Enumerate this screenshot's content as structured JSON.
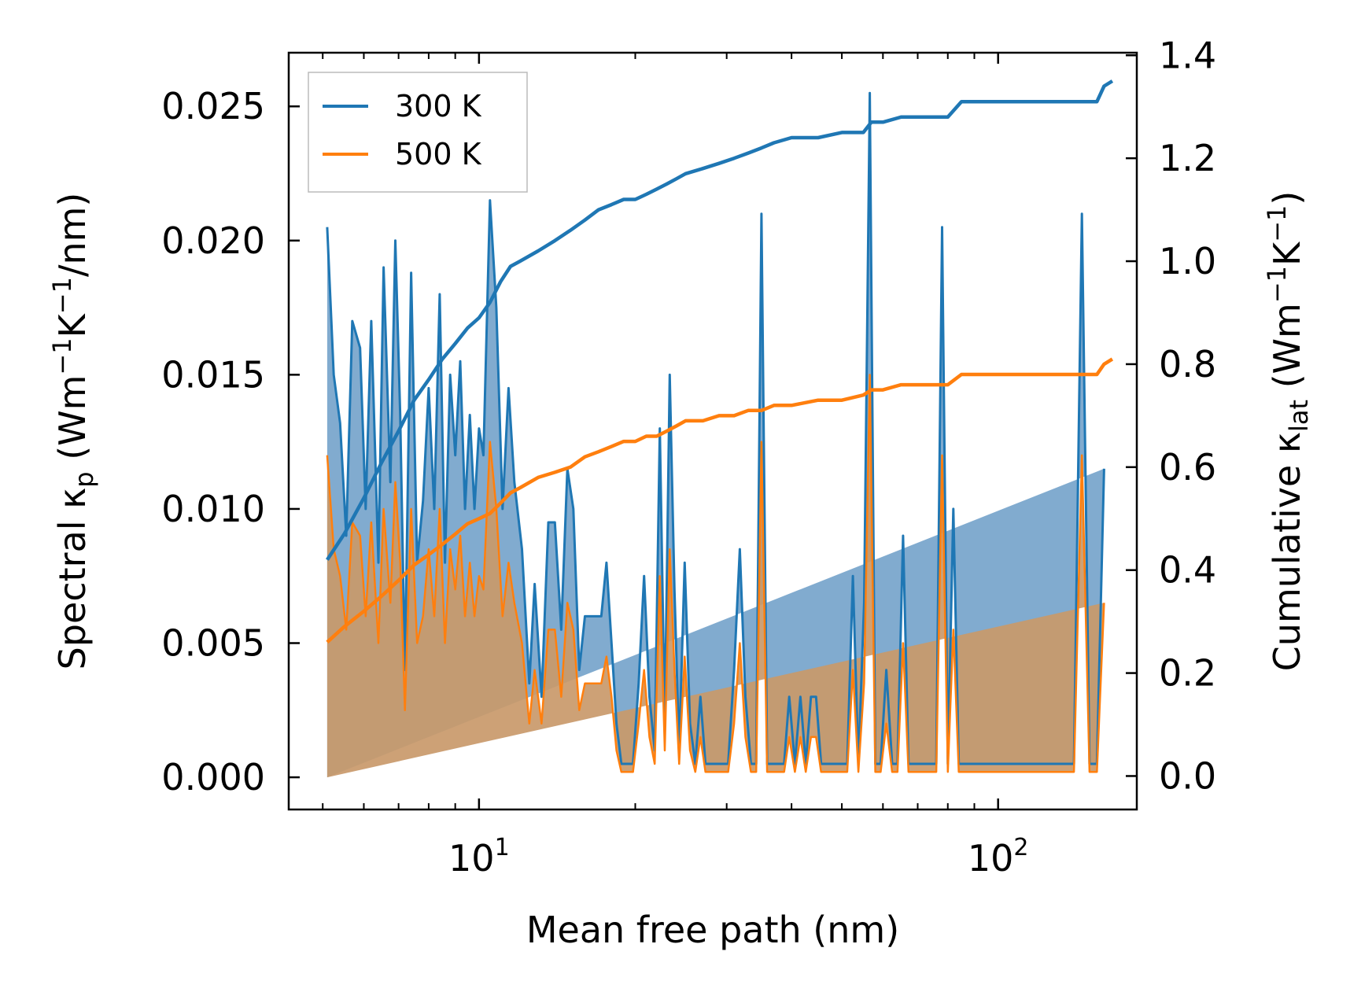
{
  "chart_data": {
    "type": "line",
    "xscale": "log",
    "xlabel": "Mean free path (nm)",
    "xlim": [
      4.3,
      185
    ],
    "xticks": [
      {
        "value": 10,
        "base": "10",
        "exp": "1"
      },
      {
        "value": 100,
        "base": "10",
        "exp": "2"
      }
    ],
    "y_left": {
      "label_prefix": "Spectral κ",
      "label_sub": "p",
      "label_units_a": " (Wm",
      "label_sup_a": "−1",
      "label_units_b": "K",
      "label_sup_b": "−1",
      "label_units_c": "/nm)",
      "ylim": [
        -0.0012,
        0.027
      ],
      "tick_values": [
        0.0,
        0.005,
        0.01,
        0.015,
        0.02,
        0.025
      ],
      "tick_labels": [
        "0.000",
        "0.005",
        "0.010",
        "0.015",
        "0.020",
        "0.025"
      ]
    },
    "y_right": {
      "label_prefix": "Cumulative κ",
      "label_sub": "lat",
      "label_units_a": " (Wm",
      "label_sup_a": "−1",
      "label_units_b": "K",
      "label_sup_b": "−1",
      "label_units_c": ")",
      "ylim": [
        -0.065,
        1.405
      ],
      "tick_values": [
        0.0,
        0.2,
        0.4,
        0.6,
        0.8,
        1.0,
        1.2,
        1.4
      ],
      "tick_labels": [
        "0.0",
        "0.2",
        "0.4",
        "0.6",
        "0.8",
        "1.0",
        "1.2",
        "1.4"
      ]
    },
    "legend": {
      "position": "top-left",
      "entries": [
        {
          "label": "300 K",
          "color": "#1f77b4"
        },
        {
          "label": "500 K",
          "color": "#ff7f0e"
        }
      ]
    },
    "spectral": {
      "x": [
        5.1,
        5.25,
        5.4,
        5.55,
        5.7,
        5.9,
        6.05,
        6.2,
        6.4,
        6.55,
        6.75,
        6.9,
        7.05,
        7.2,
        7.4,
        7.6,
        7.8,
        8.0,
        8.2,
        8.4,
        8.6,
        8.8,
        9.0,
        9.2,
        9.4,
        9.6,
        9.8,
        10.0,
        10.2,
        10.5,
        10.8,
        11.1,
        11.4,
        11.7,
        12.1,
        12.5,
        12.8,
        13.2,
        13.6,
        14.0,
        14.4,
        14.8,
        15.2,
        15.6,
        16.0,
        16.4,
        16.8,
        17.2,
        17.6,
        18.0,
        18.4,
        18.8,
        19.3,
        19.8,
        20.3,
        20.8,
        21.3,
        21.8,
        22.3,
        22.8,
        23.3,
        23.8,
        24.3,
        24.9,
        25.5,
        26.1,
        26.7,
        27.3,
        28.0,
        28.7,
        29.5,
        30.2,
        31.0,
        31.8,
        32.6,
        33.4,
        34.2,
        35.0,
        35.9,
        36.8,
        37.7,
        38.7,
        39.6,
        40.6,
        41.6,
        42.6,
        43.6,
        44.6,
        45.6,
        46.7,
        47.8,
        48.9,
        50.0,
        51.2,
        52.5,
        53.8,
        55.2,
        56.6,
        58.0,
        59.4,
        60.9,
        62.5,
        64.0,
        65.6,
        67.2,
        68.8,
        70.5,
        72.2,
        74.0,
        76.0,
        78.0,
        80.0,
        82.0,
        84.0,
        86.0,
        88.0,
        90.0,
        93.0,
        96.0,
        100.0,
        105.0,
        110.0,
        115.0,
        120.0,
        125.0,
        130.0,
        135.0,
        140.0,
        145.0,
        150.0,
        155.0,
        160.0,
        163.0,
        166.0
      ],
      "series": [
        {
          "name": "300 K",
          "color": "#1f77b4",
          "values": [
            0.0205,
            0.015,
            0.0132,
            0.009,
            0.017,
            0.016,
            0.01,
            0.017,
            0.008,
            0.019,
            0.011,
            0.02,
            0.0135,
            0.004,
            0.0188,
            0.008,
            0.0103,
            0.0145,
            0.01,
            0.018,
            0.008,
            0.015,
            0.012,
            0.0155,
            0.01,
            0.0135,
            0.01,
            0.013,
            0.012,
            0.0215,
            0.0175,
            0.01,
            0.0145,
            0.011,
            0.0085,
            0.0035,
            0.0072,
            0.003,
            0.0095,
            0.0095,
            0.0055,
            0.0115,
            0.01,
            0.004,
            0.006,
            0.006,
            0.006,
            0.006,
            0.008,
            0.005,
            0.002,
            0.0005,
            0.0005,
            0.0005,
            0.0035,
            0.0075,
            0.003,
            0.001,
            0.013,
            0.002,
            0.015,
            0.007,
            0.001,
            0.008,
            0.002,
            0.0005,
            0.003,
            0.0005,
            0.0005,
            0.0005,
            0.0005,
            0.0005,
            0.004,
            0.0085,
            0.003,
            0.0005,
            0.0005,
            0.021,
            0.0005,
            0.0005,
            0.0005,
            0.0005,
            0.003,
            0.0005,
            0.003,
            0.0005,
            0.003,
            0.003,
            0.0005,
            0.0005,
            0.0005,
            0.0005,
            0.0005,
            0.0005,
            0.0075,
            0.0005,
            0.0065,
            0.0255,
            0.0005,
            0.0005,
            0.004,
            0.0005,
            0.0005,
            0.009,
            0.0005,
            0.0005,
            0.0005,
            0.0005,
            0.0005,
            0.0005,
            0.0205,
            0.0005,
            0.01,
            0.0005,
            0.0005,
            0.0005,
            0.0005,
            0.0005,
            0.0005,
            0.0005,
            0.0005,
            0.0005,
            0.0005,
            0.0005,
            0.0005,
            0.0005,
            0.0005,
            0.0005,
            0.021,
            0.0005,
            0.0005,
            0.0115
          ]
        },
        {
          "name": "500 K",
          "color": "#ff7f0e",
          "values": [
            0.012,
            0.0085,
            0.0075,
            0.0055,
            0.0095,
            0.009,
            0.006,
            0.0095,
            0.005,
            0.01,
            0.0065,
            0.011,
            0.008,
            0.0025,
            0.01,
            0.005,
            0.006,
            0.0085,
            0.006,
            0.01,
            0.005,
            0.0085,
            0.007,
            0.009,
            0.006,
            0.008,
            0.006,
            0.0075,
            0.007,
            0.0125,
            0.01,
            0.006,
            0.008,
            0.0065,
            0.005,
            0.002,
            0.004,
            0.002,
            0.0055,
            0.0055,
            0.003,
            0.0065,
            0.0055,
            0.0025,
            0.0035,
            0.0035,
            0.0035,
            0.0035,
            0.0045,
            0.003,
            0.001,
            0.0002,
            0.0002,
            0.0002,
            0.002,
            0.004,
            0.0015,
            0.0005,
            0.0075,
            0.001,
            0.0085,
            0.004,
            0.0005,
            0.0045,
            0.001,
            0.0002,
            0.0015,
            0.0002,
            0.0002,
            0.0002,
            0.0002,
            0.0002,
            0.002,
            0.005,
            0.0015,
            0.0002,
            0.0002,
            0.0125,
            0.0002,
            0.0002,
            0.0002,
            0.0002,
            0.0015,
            0.0002,
            0.0015,
            0.0002,
            0.0015,
            0.0015,
            0.0002,
            0.0002,
            0.0002,
            0.0002,
            0.0002,
            0.0002,
            0.004,
            0.0002,
            0.0035,
            0.015,
            0.0002,
            0.0002,
            0.002,
            0.0002,
            0.0002,
            0.005,
            0.0002,
            0.0002,
            0.0002,
            0.0002,
            0.0002,
            0.0002,
            0.012,
            0.0002,
            0.0055,
            0.0002,
            0.0002,
            0.0002,
            0.0002,
            0.0002,
            0.0002,
            0.0002,
            0.0002,
            0.0002,
            0.0002,
            0.0002,
            0.0002,
            0.0002,
            0.0002,
            0.0002,
            0.012,
            0.0002,
            0.0002,
            0.0065
          ]
        }
      ]
    },
    "cumulative": {
      "x": [
        5.1,
        5.5,
        6.0,
        6.5,
        7.0,
        7.5,
        8.0,
        8.5,
        9.0,
        9.5,
        10.0,
        10.5,
        11.0,
        11.5,
        12.0,
        13.0,
        14.0,
        15.0,
        16.0,
        17.0,
        18.0,
        19.0,
        20.0,
        21.0,
        22.0,
        23.0,
        24.0,
        25.0,
        27.0,
        29.0,
        31.0,
        33.0,
        35.0,
        37.0,
        40.0,
        45.0,
        50.0,
        55.0,
        57.0,
        60.0,
        65.0,
        70.0,
        75.0,
        80.0,
        85.0,
        90.0,
        100.0,
        120.0,
        140.0,
        155.0,
        160.0,
        166.0
      ],
      "series": [
        {
          "name": "300 K",
          "color": "#1f77b4",
          "values": [
            0.42,
            0.47,
            0.54,
            0.61,
            0.67,
            0.73,
            0.77,
            0.81,
            0.84,
            0.87,
            0.89,
            0.92,
            0.96,
            0.99,
            1.0,
            1.02,
            1.04,
            1.06,
            1.08,
            1.1,
            1.11,
            1.12,
            1.12,
            1.13,
            1.14,
            1.15,
            1.16,
            1.17,
            1.18,
            1.19,
            1.2,
            1.21,
            1.22,
            1.23,
            1.24,
            1.24,
            1.25,
            1.25,
            1.27,
            1.27,
            1.28,
            1.28,
            1.28,
            1.28,
            1.31,
            1.31,
            1.31,
            1.31,
            1.31,
            1.31,
            1.34,
            1.35
          ]
        },
        {
          "name": "500 K",
          "color": "#ff7f0e",
          "values": [
            0.26,
            0.29,
            0.32,
            0.35,
            0.38,
            0.41,
            0.43,
            0.45,
            0.47,
            0.49,
            0.5,
            0.51,
            0.53,
            0.55,
            0.56,
            0.58,
            0.59,
            0.6,
            0.62,
            0.63,
            0.64,
            0.65,
            0.65,
            0.66,
            0.66,
            0.67,
            0.68,
            0.69,
            0.69,
            0.7,
            0.7,
            0.71,
            0.71,
            0.72,
            0.72,
            0.73,
            0.73,
            0.74,
            0.75,
            0.75,
            0.76,
            0.76,
            0.76,
            0.76,
            0.78,
            0.78,
            0.78,
            0.78,
            0.78,
            0.78,
            0.8,
            0.81
          ]
        }
      ]
    }
  }
}
